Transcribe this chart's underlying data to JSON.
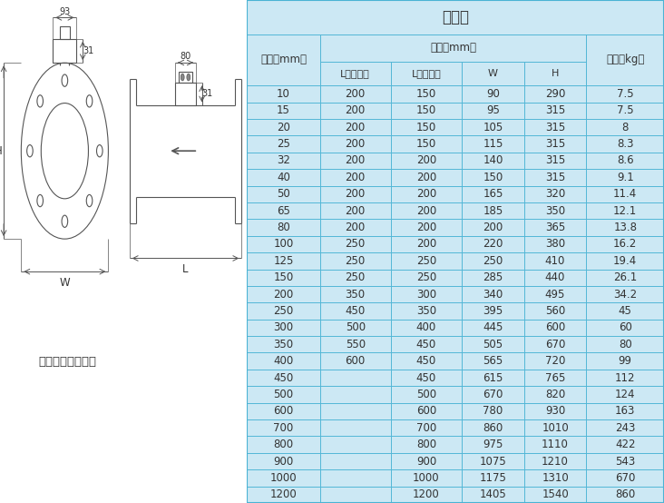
{
  "title": "分体式",
  "subheader": "尺寸（mm）",
  "col0_header": "口径（mm）",
  "col_weight": "重量（kg）",
  "sub_labels": [
    "L（四氟）",
    "L（橡胶）",
    "W",
    "H"
  ],
  "caption": "法兰形（分体型）",
  "dim93": "93",
  "dim31a": "31",
  "dim80": "80",
  "dim31b": "31",
  "dimW": "W",
  "dimH": "H",
  "dimL": "L",
  "rows": [
    [
      "10",
      "200",
      "150",
      "90",
      "290",
      "7.5"
    ],
    [
      "15",
      "200",
      "150",
      "95",
      "315",
      "7.5"
    ],
    [
      "20",
      "200",
      "150",
      "105",
      "315",
      "8"
    ],
    [
      "25",
      "200",
      "150",
      "115",
      "315",
      "8.3"
    ],
    [
      "32",
      "200",
      "200",
      "140",
      "315",
      "8.6"
    ],
    [
      "40",
      "200",
      "200",
      "150",
      "315",
      "9.1"
    ],
    [
      "50",
      "200",
      "200",
      "165",
      "320",
      "11.4"
    ],
    [
      "65",
      "200",
      "200",
      "185",
      "350",
      "12.1"
    ],
    [
      "80",
      "200",
      "200",
      "200",
      "365",
      "13.8"
    ],
    [
      "100",
      "250",
      "200",
      "220",
      "380",
      "16.2"
    ],
    [
      "125",
      "250",
      "250",
      "250",
      "410",
      "19.4"
    ],
    [
      "150",
      "250",
      "250",
      "285",
      "440",
      "26.1"
    ],
    [
      "200",
      "350",
      "300",
      "340",
      "495",
      "34.2"
    ],
    [
      "250",
      "450",
      "350",
      "395",
      "560",
      "45"
    ],
    [
      "300",
      "500",
      "400",
      "445",
      "600",
      "60"
    ],
    [
      "350",
      "550",
      "450",
      "505",
      "670",
      "80"
    ],
    [
      "400",
      "600",
      "450",
      "565",
      "720",
      "99"
    ],
    [
      "450",
      "",
      "450",
      "615",
      "765",
      "112"
    ],
    [
      "500",
      "",
      "500",
      "670",
      "820",
      "124"
    ],
    [
      "600",
      "",
      "600",
      "780",
      "930",
      "163"
    ],
    [
      "700",
      "",
      "700",
      "860",
      "1010",
      "243"
    ],
    [
      "800",
      "",
      "800",
      "975",
      "1110",
      "422"
    ],
    [
      "900",
      "",
      "900",
      "1075",
      "1210",
      "543"
    ],
    [
      "1000",
      "",
      "1000",
      "1175",
      "1310",
      "670"
    ],
    [
      "1200",
      "",
      "1200",
      "1405",
      "1540",
      "860"
    ]
  ],
  "table_bg": "#cce8f4",
  "border_color": "#4ab3d4",
  "text_color": "#333333",
  "fig_bg": "#ffffff",
  "line_color": "#555555"
}
